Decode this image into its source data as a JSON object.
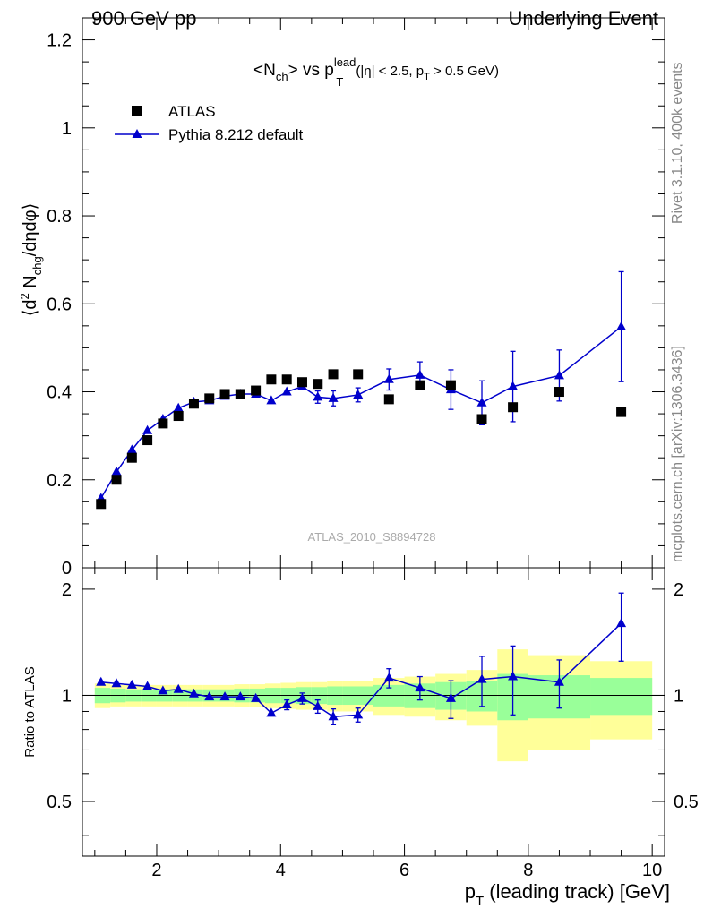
{
  "header": {
    "left": "900 GeV pp",
    "right": "Underlying Event"
  },
  "side_labels": {
    "rivet": "Rivet 3.1.10,  400k events",
    "mcplots": "mcplots.cern.ch [arXiv:1306.3436]"
  },
  "watermark": "ATLAS_2010_S8894728",
  "colors": {
    "mc": "#0000cc",
    "data": "#000000",
    "band_inner": "#99ff99",
    "band_outer": "#ffff99"
  },
  "chart_data": [
    {
      "type": "scatter",
      "panel": "main",
      "title_parts": {
        "main": "<N",
        "sub1": "ch",
        "mid": "> vs p",
        "sup": "lead",
        "sub2": "T",
        "cond": "(|η| < 2.5, p",
        "cond_sub": "T",
        "cond_end": " > 0.5 GeV)"
      },
      "ylabel_parts": {
        "a": "⟨d",
        "sup": "2",
        "b": " N",
        "sub": "chg",
        "c": "/dηdφ⟩"
      },
      "ylim": [
        0,
        1.25
      ],
      "xlim": [
        0.8,
        10.2
      ],
      "yticks": [
        "0",
        "0.2",
        "0.4",
        "0.6",
        "0.8",
        "1",
        "1.2"
      ],
      "legend": [
        "ATLAS",
        "Pythia 8.212 default"
      ],
      "x": [
        1.1,
        1.35,
        1.6,
        1.85,
        2.1,
        2.35,
        2.6,
        2.85,
        3.1,
        3.35,
        3.6,
        3.85,
        4.1,
        4.35,
        4.6,
        4.85,
        5.25,
        5.75,
        6.25,
        6.75,
        7.25,
        7.75,
        8.5,
        9.5
      ],
      "series": [
        {
          "name": "ATLAS",
          "values": [
            0.145,
            0.2,
            0.25,
            0.29,
            0.328,
            0.345,
            0.373,
            0.385,
            0.395,
            0.395,
            0.403,
            0.428,
            0.428,
            0.422,
            0.418,
            0.44,
            0.44,
            0.383,
            0.415,
            0.415,
            0.338,
            0.365,
            0.4,
            0.354
          ]
        },
        {
          "name": "Pythia 8.212 default",
          "values": [
            0.158,
            0.218,
            0.268,
            0.312,
            0.338,
            0.363,
            0.377,
            0.38,
            0.39,
            0.395,
            0.395,
            0.38,
            0.4,
            0.412,
            0.388,
            0.385,
            0.393,
            0.428,
            0.438,
            0.405,
            0.375,
            0.412,
            0.437,
            0.548
          ],
          "errors": [
            0.004,
            0.004,
            0.004,
            0.004,
            0.004,
            0.005,
            0.005,
            0.006,
            0.006,
            0.006,
            0.007,
            0.008,
            0.01,
            0.012,
            0.014,
            0.017,
            0.016,
            0.024,
            0.03,
            0.045,
            0.05,
            0.08,
            0.058,
            0.125
          ]
        }
      ]
    },
    {
      "type": "line",
      "panel": "ratio",
      "ylabel": "Ratio to ATLAS",
      "ylim": [
        0.35,
        2.3
      ],
      "xlim": [
        0.8,
        10.2
      ],
      "yticks_left": [
        "0.5",
        "1",
        "2"
      ],
      "yticks_right": [
        "0.5",
        "1",
        "2"
      ],
      "xticks": [
        "2",
        "4",
        "6",
        "8",
        "10"
      ],
      "xlabel_parts": {
        "a": "p",
        "sub": "T",
        "b": " (leading track) [GeV]"
      },
      "x": [
        1.1,
        1.35,
        1.6,
        1.85,
        2.1,
        2.35,
        2.6,
        2.85,
        3.1,
        3.35,
        3.6,
        3.85,
        4.1,
        4.35,
        4.6,
        4.85,
        5.25,
        5.75,
        6.25,
        6.75,
        7.25,
        7.75,
        8.5,
        9.5
      ],
      "series": [
        {
          "name": "Pythia 8.212 default",
          "values": [
            1.09,
            1.08,
            1.07,
            1.06,
            1.03,
            1.04,
            1.01,
            0.99,
            0.99,
            0.99,
            0.98,
            0.89,
            0.94,
            0.98,
            0.93,
            0.87,
            0.88,
            1.12,
            1.05,
            0.98,
            1.11,
            1.13,
            1.09,
            1.6
          ],
          "errors": [
            0.02,
            0.02,
            0.02,
            0.02,
            0.02,
            0.02,
            0.02,
            0.02,
            0.02,
            0.02,
            0.02,
            0.025,
            0.03,
            0.035,
            0.04,
            0.045,
            0.04,
            0.07,
            0.08,
            0.12,
            0.18,
            0.25,
            0.17,
            0.35
          ]
        }
      ],
      "bands": {
        "edges": [
          1.0,
          1.25,
          1.5,
          1.75,
          2.0,
          2.25,
          2.5,
          2.75,
          3.0,
          3.25,
          3.5,
          3.75,
          4.0,
          4.25,
          4.5,
          4.75,
          5.0,
          5.5,
          6.0,
          6.5,
          7.0,
          7.5,
          8.0,
          9.0,
          10.0
        ],
        "inner": [
          0.05,
          0.045,
          0.04,
          0.04,
          0.04,
          0.04,
          0.04,
          0.04,
          0.04,
          0.045,
          0.045,
          0.05,
          0.05,
          0.055,
          0.055,
          0.06,
          0.06,
          0.07,
          0.08,
          0.09,
          0.1,
          0.15,
          0.14,
          0.12,
          0.12
        ],
        "outer": [
          0.08,
          0.07,
          0.07,
          0.07,
          0.07,
          0.07,
          0.07,
          0.07,
          0.07,
          0.075,
          0.075,
          0.08,
          0.085,
          0.09,
          0.09,
          0.1,
          0.1,
          0.12,
          0.13,
          0.15,
          0.18,
          0.35,
          0.3,
          0.25,
          0.27
        ]
      }
    }
  ]
}
